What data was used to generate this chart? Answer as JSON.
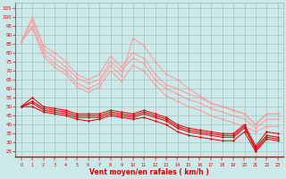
{
  "background_color": "#cce8e8",
  "grid_color": "#99bbbb",
  "xlabel": "Vent moyen/en rafales ( km/h )",
  "ylim": [
    22,
    108
  ],
  "xlim": [
    -0.5,
    23.5
  ],
  "yticks": [
    25,
    30,
    35,
    40,
    45,
    50,
    55,
    60,
    65,
    70,
    75,
    80,
    85,
    90,
    95,
    100,
    105
  ],
  "x": [
    0,
    1,
    2,
    3,
    4,
    5,
    6,
    7,
    8,
    9,
    10,
    11,
    12,
    13,
    14,
    15,
    16,
    17,
    18,
    19,
    20,
    21,
    22,
    23
  ],
  "light_red": "#ff9999",
  "dark_red": "#dd0000",
  "series_light": [
    [
      86,
      100,
      84,
      80,
      75,
      68,
      65,
      68,
      78,
      72,
      80,
      77,
      68,
      62,
      60,
      57,
      55,
      52,
      50,
      48,
      46,
      40,
      46,
      46
    ],
    [
      86,
      98,
      82,
      77,
      72,
      66,
      63,
      65,
      75,
      70,
      77,
      74,
      65,
      60,
      57,
      54,
      52,
      49,
      47,
      45,
      43,
      38,
      43,
      43
    ],
    [
      86,
      95,
      80,
      74,
      70,
      63,
      60,
      63,
      73,
      67,
      88,
      84,
      75,
      68,
      65,
      60,
      56,
      52,
      50,
      48,
      46,
      40,
      46,
      46
    ],
    [
      86,
      94,
      78,
      72,
      68,
      61,
      58,
      61,
      70,
      64,
      73,
      70,
      62,
      56,
      53,
      50,
      48,
      45,
      43,
      41,
      39,
      36,
      39,
      39
    ]
  ],
  "series_dark": [
    [
      50,
      55,
      50,
      49,
      48,
      46,
      46,
      46,
      48,
      47,
      46,
      48,
      46,
      44,
      40,
      38,
      37,
      36,
      35,
      35,
      40,
      28,
      36,
      35
    ],
    [
      50,
      52,
      48,
      47,
      46,
      44,
      44,
      44,
      46,
      45,
      44,
      46,
      44,
      42,
      38,
      36,
      35,
      34,
      33,
      33,
      38,
      27,
      34,
      33
    ],
    [
      50,
      50,
      47,
      46,
      45,
      43,
      42,
      43,
      45,
      44,
      43,
      44,
      42,
      40,
      36,
      34,
      33,
      32,
      31,
      31,
      36,
      25,
      32,
      31
    ],
    [
      50,
      53,
      49,
      48,
      47,
      45,
      45,
      45,
      47,
      46,
      45,
      47,
      45,
      43,
      39,
      37,
      36,
      35,
      34,
      34,
      39,
      26,
      33,
      32
    ]
  ]
}
